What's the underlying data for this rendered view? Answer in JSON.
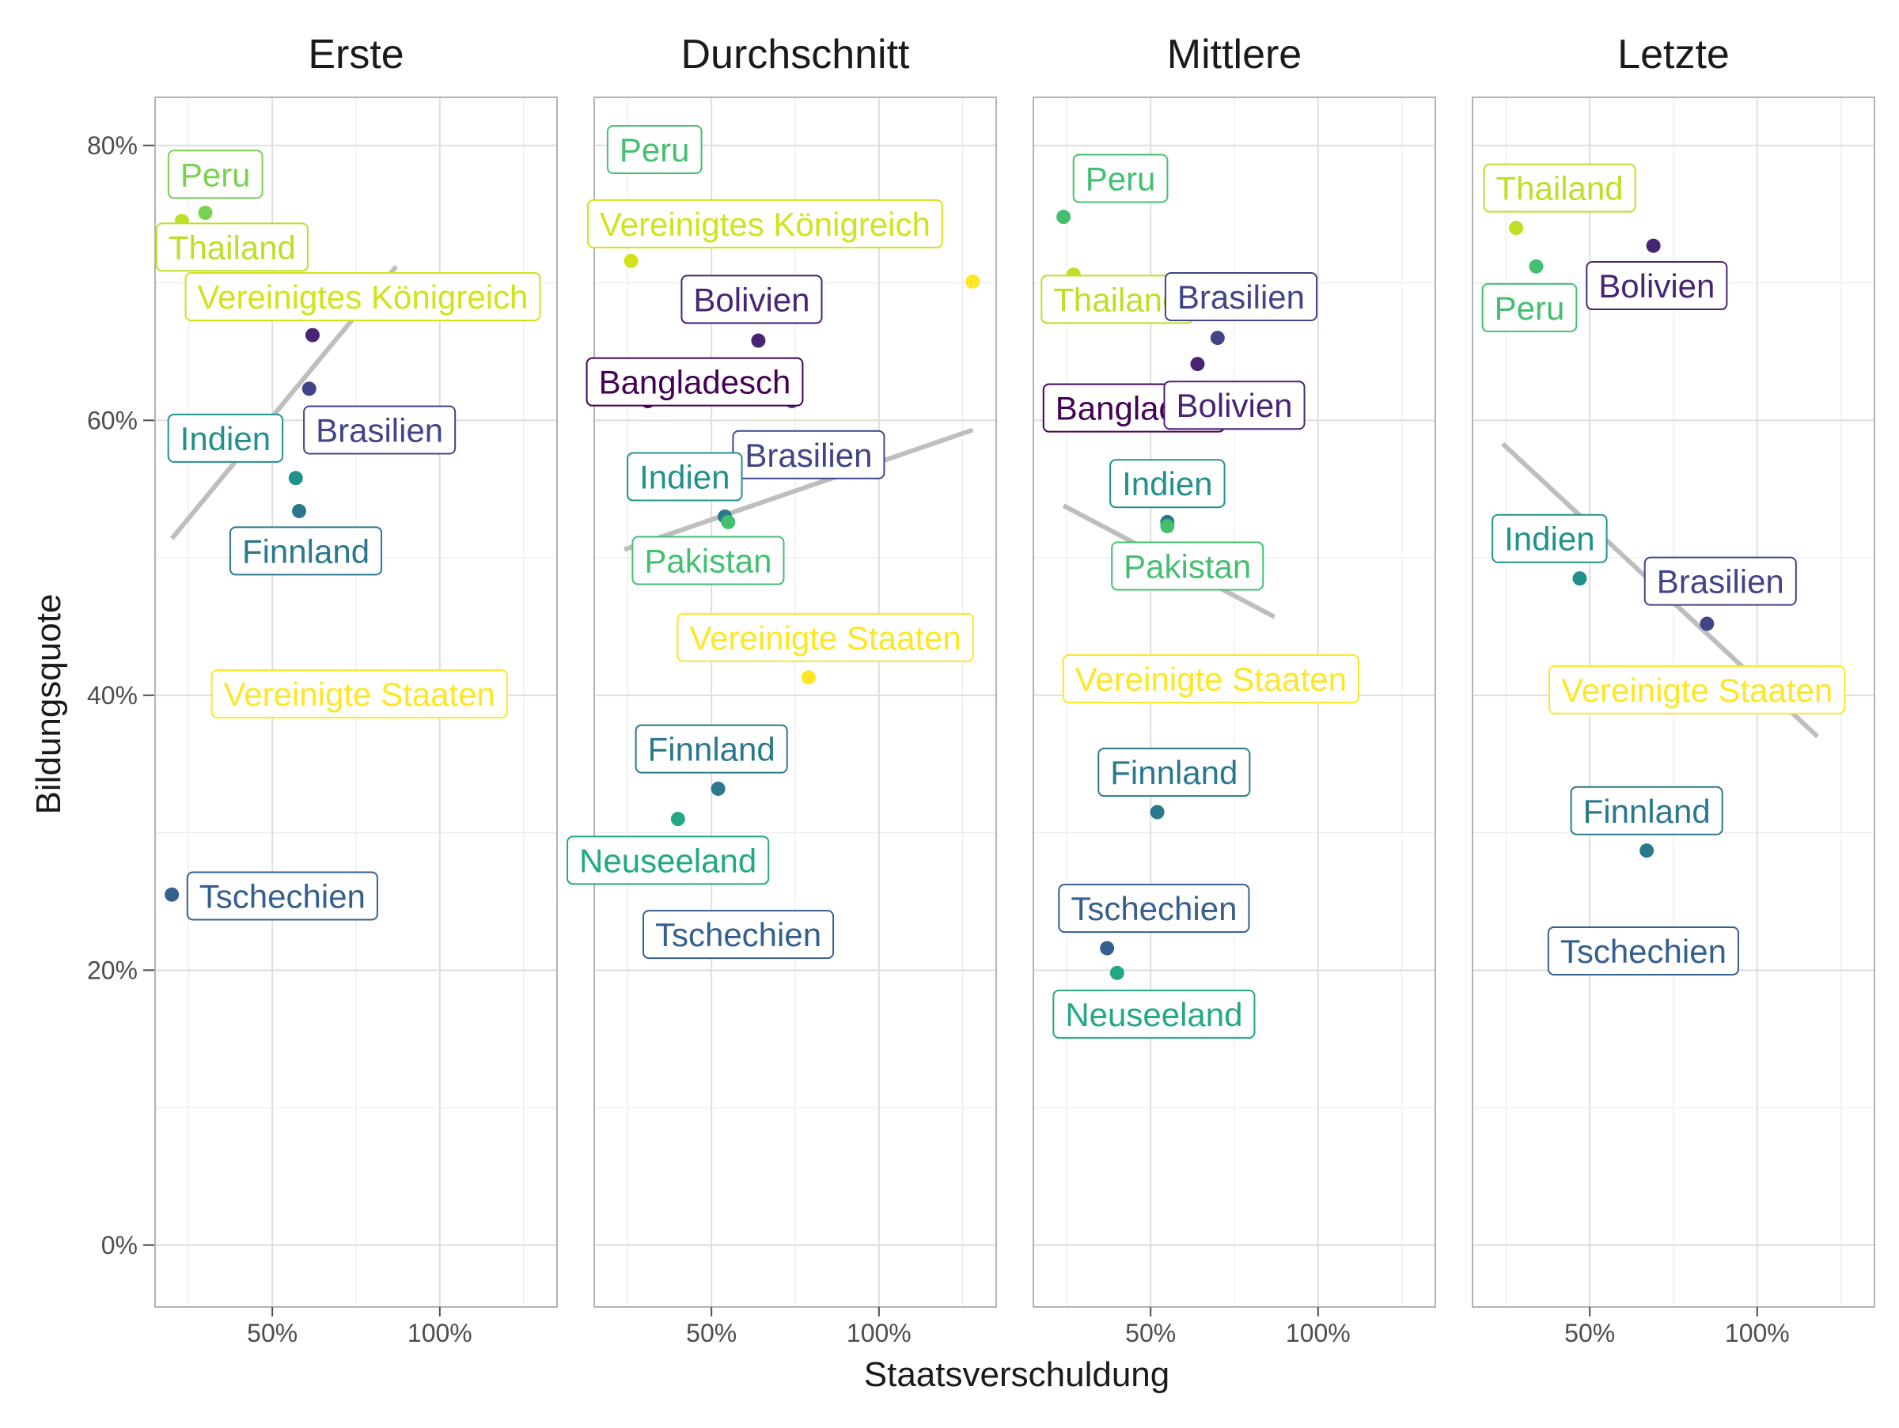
{
  "chart_data": {
    "type": "scatter",
    "xlabel": "Staatsverschuldung",
    "ylabel": "Bildungsquote",
    "xlim": [
      0.15,
      1.35
    ],
    "ylim": [
      -0.045,
      0.835
    ],
    "x_ticks": [
      0.5,
      1.0
    ],
    "x_tick_labels": [
      "50%",
      "100%"
    ],
    "y_ticks": [
      0,
      0.2,
      0.4,
      0.6,
      0.8
    ],
    "y_tick_labels": [
      "0%",
      "20%",
      "40%",
      "60%",
      "80%"
    ],
    "grid": true,
    "legend": "none",
    "trend_line": true,
    "colors": {
      "Bangladesch": "#440154",
      "Bolivien": "#482475",
      "Brasilien": "#414487",
      "Tschechien": "#355f8d",
      "Finnland": "#2a788e",
      "Indien": "#21918c",
      "Neuseeland": "#22a884",
      "Pakistan": "#44bf70",
      "Peru": "#7ad151",
      "Thailand": "#bddf26",
      "Vereinigtes Königreich": "#d2e21b",
      "Vereinigte Staaten": "#fde725",
      "trend": "#bebebe"
    },
    "panels": [
      {
        "title": "Erste",
        "trend": [
          [
            0.2,
            0.514
          ],
          [
            0.87,
            0.712
          ]
        ],
        "points": [
          {
            "country": "Peru",
            "x": 0.3,
            "y": 0.751
          },
          {
            "country": "Thailand",
            "x": 0.23,
            "y": 0.745
          },
          {
            "country": "Bolivien",
            "x": 0.62,
            "y": 0.662
          },
          {
            "country": "Brasilien",
            "x": 0.61,
            "y": 0.623
          },
          {
            "country": "Indien",
            "x": 0.57,
            "y": 0.558
          },
          {
            "country": "Finnland",
            "x": 0.58,
            "y": 0.534
          },
          {
            "country": "Tschechien",
            "x": 0.2,
            "y": 0.255
          }
        ],
        "labels": [
          {
            "text": "Peru",
            "country": "Peru",
            "x": 0.33,
            "y": 0.779
          },
          {
            "text": "Thailand",
            "country": "Thailand",
            "x": 0.38,
            "y": 0.726
          },
          {
            "text": "Vereinigtes Königreich",
            "country": "Vereinigtes Königreich",
            "x": 0.77,
            "y": 0.69
          },
          {
            "text": "Indien",
            "country": "Indien",
            "x": 0.36,
            "y": 0.587
          },
          {
            "text": "Brasilien",
            "country": "Brasilien",
            "x": 0.82,
            "y": 0.593
          },
          {
            "text": "Finnland",
            "country": "Finnland",
            "x": 0.6,
            "y": 0.505
          },
          {
            "text": "Vereinigte Staaten",
            "country": "Vereinigte Staaten",
            "x": 0.76,
            "y": 0.401
          },
          {
            "text": "Tschechien",
            "country": "Tschechien",
            "x": 0.53,
            "y": 0.254
          }
        ]
      },
      {
        "title": "Durchschnitt",
        "trend": [
          [
            0.24,
            0.506
          ],
          [
            1.28,
            0.593
          ]
        ],
        "points": [
          {
            "country": "Vereinigtes Königreich",
            "x": 0.26,
            "y": 0.716
          },
          {
            "country": "Vereinigte Staaten",
            "x": 1.28,
            "y": 0.701
          },
          {
            "country": "Bolivien",
            "x": 0.64,
            "y": 0.658
          },
          {
            "country": "Bangladesch",
            "x": 0.31,
            "y": 0.614
          },
          {
            "country": "Brasilien",
            "x": 0.74,
            "y": 0.614
          },
          {
            "country": "Finnland",
            "x": 0.54,
            "y": 0.53
          },
          {
            "country": "Pakistan",
            "x": 0.55,
            "y": 0.526
          },
          {
            "country": "Vereinigte Staaten",
            "x": 0.79,
            "y": 0.413
          },
          {
            "country": "Finnland",
            "x": 0.52,
            "y": 0.332
          },
          {
            "country": "Neuseeland",
            "x": 0.4,
            "y": 0.31
          }
        ],
        "labels": [
          {
            "text": "Peru",
            "country": "Pakistan",
            "x": 0.33,
            "y": 0.797
          },
          {
            "text": "Vereinigtes Königreich",
            "country": "Vereinigtes Königreich",
            "x": 0.66,
            "y": 0.743
          },
          {
            "text": "Bolivien",
            "country": "Bolivien",
            "x": 0.62,
            "y": 0.688
          },
          {
            "text": "Bangladesch",
            "country": "Bangladesch",
            "x": 0.45,
            "y": 0.628
          },
          {
            "text": "Brasilien",
            "country": "Brasilien",
            "x": 0.79,
            "y": 0.575
          },
          {
            "text": "Indien",
            "country": "Indien",
            "x": 0.42,
            "y": 0.559
          },
          {
            "text": "Pakistan",
            "country": "Pakistan",
            "x": 0.49,
            "y": 0.498
          },
          {
            "text": "Vereinigte Staaten",
            "country": "Vereinigte Staaten",
            "x": 0.84,
            "y": 0.442
          },
          {
            "text": "Finnland",
            "country": "Finnland",
            "x": 0.5,
            "y": 0.361
          },
          {
            "text": "Neuseeland",
            "country": "Neuseeland",
            "x": 0.37,
            "y": 0.28
          },
          {
            "text": "Tschechien",
            "country": "Tschechien",
            "x": 0.58,
            "y": 0.226
          }
        ]
      },
      {
        "title": "Mittlere",
        "trend": [
          [
            0.24,
            0.538
          ],
          [
            0.87,
            0.457
          ]
        ],
        "points": [
          {
            "country": "Pakistan",
            "x": 0.24,
            "y": 0.748
          },
          {
            "country": "Thailand",
            "x": 0.27,
            "y": 0.706
          },
          {
            "country": "Brasilien",
            "x": 0.7,
            "y": 0.66
          },
          {
            "country": "Bolivien",
            "x": 0.64,
            "y": 0.641
          },
          {
            "country": "Finnland",
            "x": 0.55,
            "y": 0.526
          },
          {
            "country": "Pakistan",
            "x": 0.55,
            "y": 0.523
          },
          {
            "country": "Finnland",
            "x": 0.52,
            "y": 0.315
          },
          {
            "country": "Tschechien",
            "x": 0.37,
            "y": 0.216
          },
          {
            "country": "Neuseeland",
            "x": 0.4,
            "y": 0.198
          }
        ],
        "labels": [
          {
            "text": "Peru",
            "country": "Pakistan",
            "x": 0.41,
            "y": 0.776
          },
          {
            "text": "Thailand",
            "country": "Thailand",
            "x": 0.4,
            "y": 0.688
          },
          {
            "text": "Brasilien",
            "country": "Brasilien",
            "x": 0.77,
            "y": 0.69
          },
          {
            "text": "Banglades",
            "country": "Bangladesch",
            "x": 0.45,
            "y": 0.609
          },
          {
            "text": "Bolivien",
            "country": "Bolivien",
            "x": 0.75,
            "y": 0.611
          },
          {
            "text": "Indien",
            "country": "Indien",
            "x": 0.55,
            "y": 0.554
          },
          {
            "text": "Pakistan",
            "country": "Pakistan",
            "x": 0.61,
            "y": 0.494
          },
          {
            "text": "Vereinigte Staaten",
            "country": "Vereinigte Staaten",
            "x": 0.68,
            "y": 0.412
          },
          {
            "text": "Finnland",
            "country": "Finnland",
            "x": 0.57,
            "y": 0.344
          },
          {
            "text": "Tschechien",
            "country": "Tschechien",
            "x": 0.51,
            "y": 0.245
          },
          {
            "text": "Neuseeland",
            "country": "Neuseeland",
            "x": 0.51,
            "y": 0.168
          }
        ]
      },
      {
        "title": "Letzte",
        "trend": [
          [
            0.24,
            0.583
          ],
          [
            1.18,
            0.37
          ]
        ],
        "points": [
          {
            "country": "Thailand",
            "x": 0.28,
            "y": 0.74
          },
          {
            "country": "Bolivien",
            "x": 0.69,
            "y": 0.727
          },
          {
            "country": "Pakistan",
            "x": 0.34,
            "y": 0.712
          },
          {
            "country": "Indien",
            "x": 0.47,
            "y": 0.485
          },
          {
            "country": "Brasilien",
            "x": 0.85,
            "y": 0.452
          },
          {
            "country": "Finnland",
            "x": 0.67,
            "y": 0.287
          }
        ],
        "labels": [
          {
            "text": "Thailand",
            "country": "Thailand",
            "x": 0.41,
            "y": 0.769
          },
          {
            "text": "Peru",
            "country": "Pakistan",
            "x": 0.32,
            "y": 0.682
          },
          {
            "text": "Bolivien",
            "country": "Bolivien",
            "x": 0.7,
            "y": 0.698
          },
          {
            "text": "Indien",
            "country": "Indien",
            "x": 0.38,
            "y": 0.514
          },
          {
            "text": "Brasilien",
            "country": "Brasilien",
            "x": 0.89,
            "y": 0.483
          },
          {
            "text": "Vereinigte Staaten",
            "country": "Vereinigte Staaten",
            "x": 0.82,
            "y": 0.404
          },
          {
            "text": "Finnland",
            "country": "Finnland",
            "x": 0.67,
            "y": 0.316
          },
          {
            "text": "Tschechien",
            "country": "Tschechien",
            "x": 0.66,
            "y": 0.214
          }
        ]
      }
    ]
  }
}
